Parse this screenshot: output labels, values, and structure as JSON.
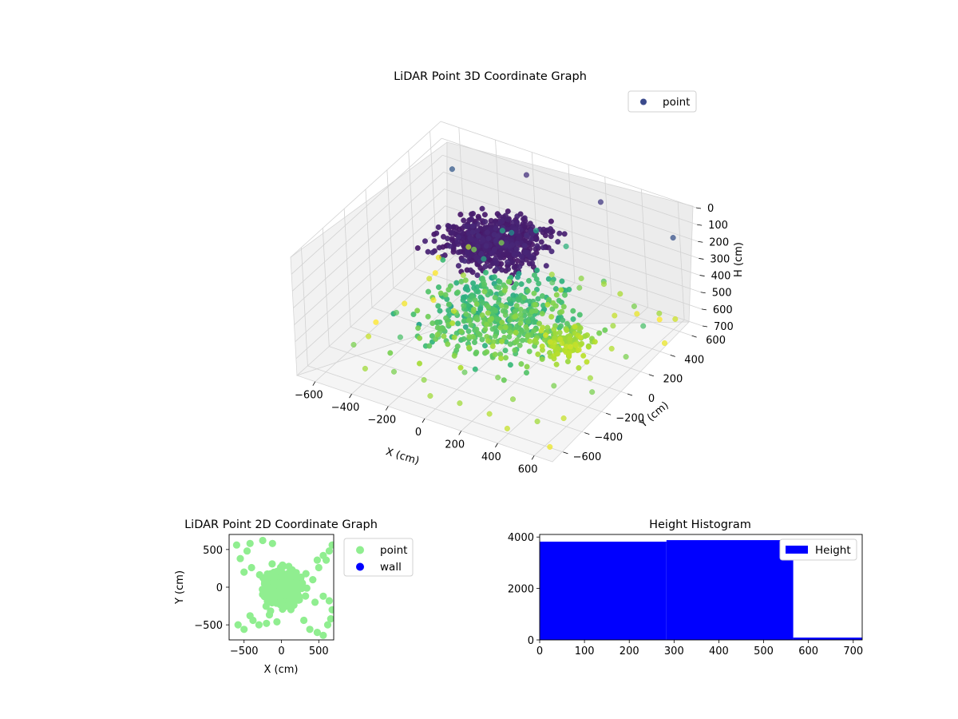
{
  "chart_data": [
    {
      "type": "scatter",
      "title": "LiDAR Point 3D Coordinate Graph",
      "xlabel": "X (cm)",
      "ylabel": "Y (cm)",
      "zlabel": "H (cm)",
      "xlim": [
        -700,
        700
      ],
      "ylim": [
        -700,
        700
      ],
      "zlim": [
        0,
        700
      ],
      "z_inverted": true,
      "x_ticks": [
        "-600",
        "-400",
        "-200",
        "0",
        "200",
        "400",
        "600"
      ],
      "y_ticks": [
        "-600",
        "-400",
        "-200",
        "0",
        "200",
        "400",
        "600"
      ],
      "z_ticks": [
        "0",
        "100",
        "200",
        "300",
        "400",
        "500",
        "600",
        "700"
      ],
      "legend": [
        "point"
      ],
      "legend_position": "top-right",
      "colormap": "viridis (by height)",
      "grid": true,
      "series": [
        {
          "name": "point",
          "dense_clusters": [
            {
              "center": [
                0,
                0,
                40
              ],
              "spread": [
                200,
                200,
                30
              ]
            },
            {
              "center": [
                0,
                0,
                500
              ],
              "spread": [
                300,
                300,
                80
              ]
            },
            {
              "center": [
                300,
                100,
                600
              ],
              "spread": [
                120,
                120,
                40
              ]
            }
          ],
          "points": [
            [
              -640,
              520,
              680
            ],
            [
              -600,
              420,
              700
            ],
            [
              -560,
              300,
              650
            ],
            [
              -520,
              600,
              620
            ],
            [
              -480,
              200,
              690
            ],
            [
              -440,
              520,
              560
            ],
            [
              -400,
              350,
              600
            ],
            [
              -360,
              640,
              560
            ],
            [
              -320,
              120,
              650
            ],
            [
              -300,
              560,
              420
            ],
            [
              -250,
              300,
              420
            ],
            [
              -200,
              480,
              350
            ],
            [
              -150,
              620,
              400
            ],
            [
              -100,
              220,
              520
            ],
            [
              -50,
              580,
              600
            ],
            [
              0,
              640,
              450
            ],
            [
              50,
              420,
              520
            ],
            [
              100,
              600,
              580
            ],
            [
              150,
              500,
              560
            ],
            [
              200,
              640,
              600
            ],
            [
              250,
              560,
              520
            ],
            [
              300,
              620,
              610
            ],
            [
              350,
              480,
              640
            ],
            [
              400,
              600,
              680
            ],
            [
              450,
              500,
              560
            ],
            [
              500,
              640,
              700
            ],
            [
              550,
              560,
              600
            ],
            [
              600,
              620,
              650
            ],
            [
              640,
              450,
              680
            ],
            [
              -620,
              -100,
              700
            ],
            [
              -580,
              100,
              690
            ],
            [
              -540,
              -300,
              640
            ],
            [
              -500,
              -500,
              560
            ],
            [
              -440,
              -200,
              520
            ],
            [
              -380,
              -600,
              600
            ],
            [
              -300,
              -400,
              500
            ],
            [
              -220,
              -600,
              560
            ],
            [
              -150,
              -300,
              500
            ],
            [
              -80,
              -560,
              580
            ],
            [
              0,
              -640,
              600
            ],
            [
              80,
              -450,
              540
            ],
            [
              150,
              -620,
              600
            ],
            [
              220,
              -380,
              560
            ],
            [
              300,
              -600,
              620
            ],
            [
              360,
              -480,
              580
            ],
            [
              420,
              -640,
              640
            ],
            [
              480,
              -300,
              560
            ],
            [
              540,
              -560,
              600
            ],
            [
              600,
              -420,
              640
            ],
            [
              640,
              -620,
              680
            ],
            [
              -600,
              620,
              200
            ],
            [
              -200,
              640,
              100
            ],
            [
              200,
              650,
              120
            ],
            [
              600,
              640,
              180
            ],
            [
              620,
              300,
              500
            ],
            [
              640,
              100,
              560
            ],
            [
              560,
              -100,
              600
            ],
            [
              660,
              -250,
              560
            ],
            [
              500,
              200,
              620
            ],
            [
              420,
              350,
              600
            ]
          ]
        }
      ]
    },
    {
      "type": "scatter",
      "title": "LiDAR Point 2D Coordinate Graph",
      "xlabel": "X (cm)",
      "ylabel": "Y (cm)",
      "xlim": [
        -700,
        700
      ],
      "ylim": [
        -700,
        700
      ],
      "x_ticks": [
        -500,
        0,
        500
      ],
      "y_ticks": [
        -500,
        0,
        500
      ],
      "legend": [
        "point",
        "wall"
      ],
      "legend_position": "outside-right",
      "grid": false,
      "colors": {
        "point": "#90ee90",
        "wall": "#0000ff"
      },
      "series": [
        {
          "name": "point",
          "dense_region": {
            "center": [
              0,
              0
            ],
            "spread": [
              200,
              200
            ]
          },
          "points": [
            [
              -600,
              560
            ],
            [
              -460,
              480
            ],
            [
              -420,
              580
            ],
            [
              -250,
              620
            ],
            [
              -400,
              260
            ],
            [
              -580,
              -500
            ],
            [
              -500,
              -560
            ],
            [
              -380,
              -440
            ],
            [
              -300,
              -500
            ],
            [
              -200,
              -480
            ],
            [
              -60,
              -460
            ],
            [
              380,
              -560
            ],
            [
              480,
              -600
            ],
            [
              560,
              -640
            ],
            [
              620,
              -500
            ],
            [
              660,
              -420
            ],
            [
              680,
              -300
            ],
            [
              640,
              -180
            ],
            [
              560,
              -120
            ],
            [
              450,
              -200
            ],
            [
              420,
              100
            ],
            [
              500,
              260
            ],
            [
              600,
              360
            ],
            [
              640,
              480
            ],
            [
              680,
              560
            ],
            [
              560,
              420
            ],
            [
              480,
              360
            ],
            [
              -120,
              580
            ],
            [
              -500,
              200
            ],
            [
              -550,
              380
            ],
            [
              300,
              -440
            ],
            [
              -420,
              -380
            ]
          ]
        },
        {
          "name": "wall",
          "points": []
        }
      ]
    },
    {
      "type": "bar",
      "title": "Height Histogram",
      "xlabel": "",
      "ylabel": "",
      "xlim": [
        0,
        720
      ],
      "ylim": [
        0,
        4100
      ],
      "x_ticks": [
        0,
        100,
        200,
        300,
        400,
        500,
        600,
        700
      ],
      "y_ticks": [
        0,
        2000,
        4000
      ],
      "legend": [
        "Height"
      ],
      "legend_position": "top-right",
      "colors": {
        "Height": "#0000ff"
      },
      "bins": [
        {
          "start": 0,
          "end": 283,
          "count": 3820
        },
        {
          "start": 283,
          "end": 566,
          "count": 3880
        },
        {
          "start": 566,
          "end": 720,
          "count": 90
        }
      ]
    }
  ]
}
